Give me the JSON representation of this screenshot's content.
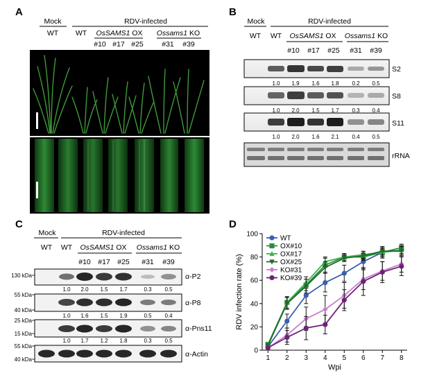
{
  "panels": {
    "A": {
      "label": "A",
      "mock": "Mock",
      "infected": "RDV-infected",
      "groups": [
        {
          "name": "WT"
        },
        {
          "name": "WT"
        },
        {
          "name": "OsSAMS1",
          "suffix": " OX",
          "lines": [
            "#10",
            "#17",
            "#25"
          ]
        },
        {
          "name": "Ossams1",
          "suffix": " KO",
          "lines": [
            "#31",
            "#39"
          ]
        }
      ]
    },
    "B": {
      "label": "B",
      "mock": "Mock",
      "infected": "RDV-infected",
      "wt1": "WT",
      "wt2": "WT",
      "ox_name": "OsSAMS1",
      "ox_suffix": " OX",
      "ko_name": "Ossams1",
      "ko_suffix": " KO",
      "lines": [
        "#10",
        "#17",
        "#25",
        "#31",
        "#39"
      ],
      "blots": [
        {
          "name": "S2",
          "values": [
            "1.0",
            "1.9",
            "1.6",
            "1.8",
            "0.2",
            "0.5"
          ]
        },
        {
          "name": "S8",
          "values": [
            "1.0",
            "2.0",
            "1.5",
            "1.7",
            "0.3",
            "0.4"
          ]
        },
        {
          "name": "S11",
          "values": [
            "1.0",
            "2.0",
            "1.6",
            "2.1",
            "0.4",
            "0.5"
          ]
        },
        {
          "name": "rRNA",
          "values": []
        }
      ]
    },
    "C": {
      "label": "C",
      "mock": "Mock",
      "infected": "RDV-infected",
      "wt1": "WT",
      "wt2": "WT",
      "ox_name": "OsSAMS1",
      "ox_suffix": " OX",
      "ko_name": "Ossams1",
      "ko_suffix": " KO",
      "lines": [
        "#10",
        "#17",
        "#25",
        "#31",
        "#39"
      ],
      "blots": [
        {
          "name": "α-P2",
          "mw": [
            "130 kDa"
          ],
          "values": [
            "1.0",
            "2.0",
            "1.5",
            "1.7",
            "0.3",
            "0.5"
          ]
        },
        {
          "name": "α-P8",
          "mw": [
            "55 kDa",
            "40 kDa"
          ],
          "values": [
            "1.0",
            "1.6",
            "1.5",
            "1.9",
            "0.5",
            "0.4"
          ]
        },
        {
          "name": "α-Pns11",
          "mw": [
            "25 kDa",
            "15 kDa"
          ],
          "values": [
            "1.0",
            "1.7",
            "1.2",
            "1.8",
            "0.3",
            "0.5"
          ]
        },
        {
          "name": "α-Actin",
          "mw": [
            "55 kDa",
            "40 kDa"
          ],
          "values": []
        }
      ]
    },
    "D": {
      "label": "D"
    }
  },
  "chart_data": {
    "type": "line",
    "title": "",
    "xlabel": "Wpi",
    "ylabel": "RDV infection rate (%)",
    "x": [
      1,
      2,
      3,
      4,
      5,
      6,
      7,
      8
    ],
    "xlim": [
      0.7,
      8.3
    ],
    "ylim": [
      0,
      100
    ],
    "yticks": [
      0,
      20,
      40,
      60,
      80,
      100
    ],
    "legend_position": "top-left",
    "series": [
      {
        "name": "WT",
        "color": "#3a5fae",
        "marker": "circle",
        "values": [
          3,
          25,
          47,
          58,
          66,
          76,
          84,
          86
        ],
        "err": [
          1,
          6,
          7,
          8,
          7,
          7,
          5,
          4
        ]
      },
      {
        "name": "OX#10",
        "color": "#2b8f3c",
        "marker": "square",
        "values": [
          5,
          41,
          56,
          73,
          80,
          80,
          84,
          88
        ],
        "err": [
          1,
          5,
          5,
          6,
          3,
          3,
          3,
          3
        ]
      },
      {
        "name": "OX#17",
        "color": "#3db34a",
        "marker": "triangle-up",
        "values": [
          4,
          41,
          58,
          76,
          80,
          82,
          84,
          86
        ],
        "err": [
          1,
          5,
          5,
          4,
          3,
          3,
          4,
          3
        ]
      },
      {
        "name": "OX#25",
        "color": "#1f6b2b",
        "marker": "triangle-down",
        "values": [
          4,
          40,
          55,
          71,
          79,
          81,
          85,
          85
        ],
        "err": [
          1,
          5,
          6,
          5,
          3,
          3,
          3,
          4
        ]
      },
      {
        "name": "KO#31",
        "color": "#c77fce",
        "marker": "diamond",
        "values": [
          2,
          13,
          27,
          35,
          47,
          61,
          68,
          74
        ],
        "err": [
          1,
          6,
          10,
          12,
          11,
          9,
          8,
          7
        ]
      },
      {
        "name": "KO#39",
        "color": "#6e2276",
        "marker": "circle",
        "values": [
          2,
          11,
          19,
          22,
          43,
          59,
          67,
          72
        ],
        "err": [
          1,
          6,
          10,
          8,
          9,
          12,
          9,
          8
        ]
      }
    ]
  }
}
